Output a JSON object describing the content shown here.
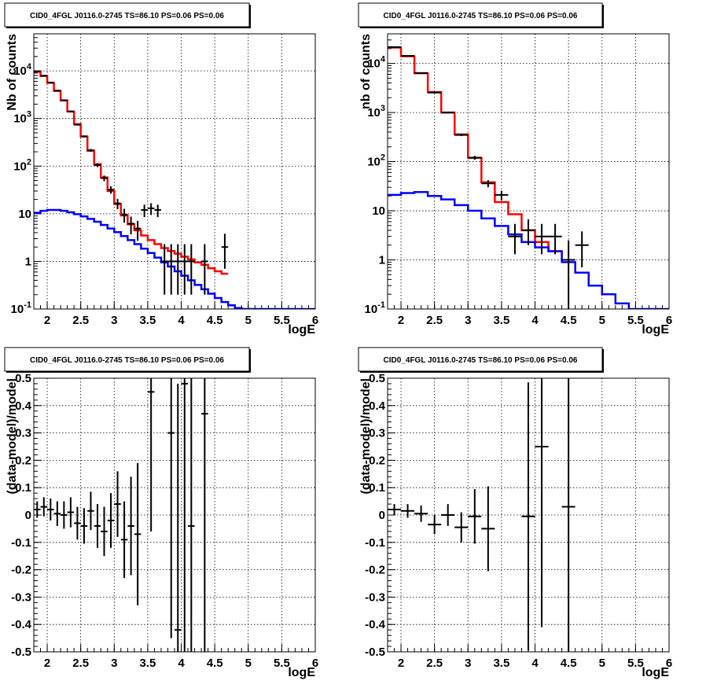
{
  "chart_data": [
    {
      "type": "line",
      "title": "CID0_4FGL J0116.0-2745 TS=86.10 PS=0.06 PS=0.06",
      "xlabel": "logE",
      "ylabel": "Nb of counts",
      "xscale": "linear",
      "yscale": "log",
      "xlim": [
        1.8,
        6
      ],
      "ylim": [
        0.1,
        60000
      ],
      "xticks": [
        "2",
        "2.5",
        "3",
        "3.5",
        "4",
        "4.5",
        "5",
        "5.5",
        "6"
      ],
      "yticks": [
        "10^-1",
        "1",
        "10",
        "10^2",
        "10^3",
        "10^4"
      ],
      "grid": true,
      "series": [
        {
          "color": "#ff0000",
          "style": "step",
          "bin_width": 0.1,
          "x": [
            1.85,
            1.95,
            2.05,
            2.15,
            2.25,
            2.35,
            2.45,
            2.55,
            2.65,
            2.75,
            2.85,
            2.95,
            3.05,
            3.15,
            3.25,
            3.35,
            3.45,
            3.55,
            3.65,
            3.75,
            3.85,
            3.95,
            4.05,
            4.15,
            4.25,
            4.35,
            4.45,
            4.55,
            4.65
          ],
          "values": [
            9600,
            7800,
            5600,
            3800,
            2400,
            1400,
            760,
            420,
            210,
            110,
            58,
            30,
            16,
            9.2,
            6.0,
            4.5,
            3.5,
            2.8,
            2.3,
            1.9,
            1.65,
            1.45,
            1.25,
            1.1,
            0.95,
            0.85,
            0.72,
            0.62,
            0.55
          ]
        },
        {
          "color": "#0000ff",
          "style": "step",
          "bin_width": 0.1,
          "x": [
            1.85,
            1.95,
            2.05,
            2.15,
            2.25,
            2.35,
            2.45,
            2.55,
            2.65,
            2.75,
            2.85,
            2.95,
            3.05,
            3.15,
            3.25,
            3.35,
            3.45,
            3.55,
            3.65,
            3.75,
            3.85,
            3.95,
            4.05,
            4.15,
            4.25,
            4.35,
            4.45,
            4.55,
            4.65,
            4.75,
            4.85,
            4.95,
            5.05,
            5.15,
            5.25,
            5.35,
            5.45,
            5.55,
            5.65,
            5.75,
            5.85,
            5.95
          ],
          "values": [
            10.5,
            11.5,
            12,
            12,
            11.5,
            10.8,
            9.8,
            8.8,
            7.8,
            6.8,
            5.8,
            4.9,
            4.1,
            3.4,
            2.8,
            2.3,
            1.85,
            1.5,
            1.2,
            0.95,
            0.78,
            0.62,
            0.5,
            0.4,
            0.32,
            0.26,
            0.21,
            0.17,
            0.14,
            0.12,
            0.105,
            0.1,
            0.1,
            0.1,
            0.1,
            0.1,
            0.1,
            0.1,
            0.1,
            0.1,
            0.1,
            0.1
          ]
        },
        {
          "color": "#000000",
          "style": "errorbar",
          "xerr": 0.05,
          "x": [
            1.85,
            1.95,
            2.05,
            2.15,
            2.25,
            2.35,
            2.45,
            2.55,
            2.65,
            2.75,
            2.85,
            2.95,
            3.05,
            3.15,
            3.25,
            3.35,
            3.45,
            3.55,
            3.65,
            3.75,
            3.85,
            3.95,
            4.05,
            4.15,
            4.35,
            4.65
          ],
          "values": [
            9800,
            7900,
            5700,
            3850,
            2400,
            1410,
            740,
            420,
            215,
            105,
            56,
            32,
            16.5,
            9.6,
            6.2,
            4.9,
            12,
            13,
            12,
            1,
            1,
            1,
            1,
            1,
            1,
            2
          ],
          "yerr_low": [
            100,
            90,
            75,
            60,
            50,
            40,
            27,
            20,
            15,
            10,
            7.5,
            5.6,
            4,
            3.1,
            2.5,
            2.2,
            3.5,
            3.6,
            3.5,
            0.8,
            0.8,
            0.8,
            0.8,
            0.8,
            0.8,
            1.3
          ],
          "yerr_high": [
            100,
            90,
            75,
            60,
            50,
            40,
            27,
            20,
            15,
            10,
            7.5,
            5.6,
            4,
            3.1,
            2.5,
            2.2,
            3.5,
            3.6,
            3.5,
            1.3,
            1.3,
            1.3,
            1.3,
            1.3,
            1.3,
            1.8
          ]
        }
      ]
    },
    {
      "type": "line",
      "title": "CID0_4FGL J0116.0-2745 TS=86.10 PS=0.06 PS=0.06",
      "xlabel": "logE",
      "ylabel": "nb of counts",
      "xscale": "linear",
      "yscale": "log",
      "xlim": [
        1.8,
        6
      ],
      "ylim": [
        0.1,
        40000
      ],
      "xticks": [
        "2",
        "2.5",
        "3",
        "3.5",
        "4",
        "4.5",
        "5",
        "5.5",
        "6"
      ],
      "yticks": [
        "10^-1",
        "1",
        "10",
        "10^2",
        "10^3",
        "10^4"
      ],
      "grid": true,
      "series": [
        {
          "color": "#ff0000",
          "style": "step",
          "bin_width": 0.2,
          "x": [
            1.9,
            2.1,
            2.3,
            2.5,
            2.7,
            2.9,
            3.1,
            3.3,
            3.5,
            3.7,
            3.9,
            4.1,
            4.3
          ],
          "values": [
            21000,
            14000,
            6300,
            2600,
            1000,
            360,
            120,
            38,
            15,
            8.5,
            4.0,
            2.3,
            1.5
          ]
        },
        {
          "color": "#0000ff",
          "style": "step",
          "bin_width": 0.2,
          "x": [
            1.9,
            2.1,
            2.3,
            2.5,
            2.7,
            2.9,
            3.1,
            3.3,
            3.5,
            3.7,
            3.9,
            4.1,
            4.3,
            4.5,
            4.7,
            4.9,
            5.1,
            5.3,
            5.5,
            5.7,
            5.9
          ],
          "values": [
            21,
            23,
            24,
            20,
            17,
            13,
            10,
            7,
            4.9,
            3.3,
            2.3,
            1.8,
            1.5,
            0.9,
            0.55,
            0.3,
            0.2,
            0.13,
            0.1,
            0.1,
            0.1
          ]
        },
        {
          "color": "#000000",
          "style": "errorbar",
          "xerr": 0.1,
          "x": [
            1.9,
            2.1,
            2.3,
            2.5,
            2.7,
            2.9,
            3.1,
            3.3,
            3.5,
            3.7,
            3.9,
            4.1,
            4.3,
            4.5,
            4.7
          ],
          "values": [
            21500,
            14200,
            6350,
            2550,
            1000,
            350,
            120,
            36,
            21,
            3,
            4,
            3,
            3,
            1,
            2
          ],
          "yerr_low": [
            150,
            120,
            80,
            50,
            32,
            19,
            11,
            6,
            4.6,
            1.7,
            2,
            1.7,
            1.7,
            0.9,
            1.3
          ],
          "yerr_high": [
            150,
            120,
            80,
            50,
            32,
            19,
            11,
            6,
            4.6,
            2.4,
            2.7,
            2.4,
            2.4,
            1.5,
            1.8
          ]
        }
      ]
    },
    {
      "type": "scatter",
      "title": "CID0_4FGL J0116.0-2745 TS=86.10 PS=0.06 PS=0.06",
      "xlabel": "logE",
      "ylabel": "(data-model)/model",
      "xscale": "linear",
      "yscale": "linear",
      "xlim": [
        1.8,
        6
      ],
      "ylim": [
        -0.5,
        0.5
      ],
      "xticks": [
        "2",
        "2.5",
        "3",
        "3.5",
        "4",
        "4.5",
        "5",
        "5.5",
        "6"
      ],
      "yticks": [
        "-0.5",
        "-0.4",
        "-0.3",
        "-0.2",
        "-0.1",
        "0",
        "0.1",
        "0.2",
        "0.3",
        "0.4",
        "0.5"
      ],
      "grid": true,
      "series": [
        {
          "color": "#000000",
          "style": "errorbar",
          "xerr": 0.05,
          "x": [
            1.85,
            1.95,
            2.05,
            2.15,
            2.25,
            2.35,
            2.45,
            2.55,
            2.65,
            2.75,
            2.85,
            2.95,
            3.05,
            3.15,
            3.25,
            3.35,
            3.55,
            3.85,
            3.95,
            4.05,
            4.15,
            4.35
          ],
          "values": [
            0.02,
            0.03,
            0.02,
            0.005,
            0.0,
            0.01,
            -0.03,
            -0.04,
            0.015,
            -0.04,
            -0.06,
            -0.02,
            0.04,
            -0.09,
            -0.04,
            -0.07,
            0.45,
            0.3,
            -0.42,
            0.48,
            -0.04,
            0.37
          ],
          "yerr": [
            0.03,
            0.035,
            0.04,
            0.045,
            0.05,
            0.055,
            0.06,
            0.065,
            0.07,
            0.08,
            0.09,
            0.1,
            0.12,
            0.14,
            0.18,
            0.26,
            0.51,
            0.75,
            0.9,
            1.0,
            1.0,
            1.0
          ]
        }
      ]
    },
    {
      "type": "scatter",
      "title": "CID0_4FGL J0116.0-2745 TS=86.10 PS=0.06 PS=0.06",
      "xlabel": "logE",
      "ylabel": "(data-model)/model",
      "xscale": "linear",
      "yscale": "linear",
      "xlim": [
        1.8,
        6
      ],
      "ylim": [
        -0.5,
        0.5
      ],
      "xticks": [
        "2",
        "2.5",
        "3",
        "3.5",
        "4",
        "4.5",
        "5",
        "5.5",
        "6"
      ],
      "yticks": [
        "-0.5",
        "-0.4",
        "-0.3",
        "-0.2",
        "-0.1",
        "0",
        "0.1",
        "0.2",
        "0.3",
        "0.4",
        "0.5"
      ],
      "grid": true,
      "series": [
        {
          "color": "#000000",
          "style": "errorbar",
          "xerr": 0.1,
          "x": [
            1.9,
            2.1,
            2.3,
            2.5,
            2.7,
            2.9,
            3.1,
            3.3,
            3.9,
            4.1,
            4.5
          ],
          "values": [
            0.02,
            0.015,
            0.005,
            -0.035,
            0.0,
            -0.045,
            -0.005,
            -0.05,
            -0.005,
            0.25,
            0.03
          ],
          "yerr": [
            0.02,
            0.025,
            0.03,
            0.035,
            0.04,
            0.055,
            0.1,
            0.155,
            0.49,
            0.66,
            1.0
          ]
        }
      ]
    }
  ]
}
